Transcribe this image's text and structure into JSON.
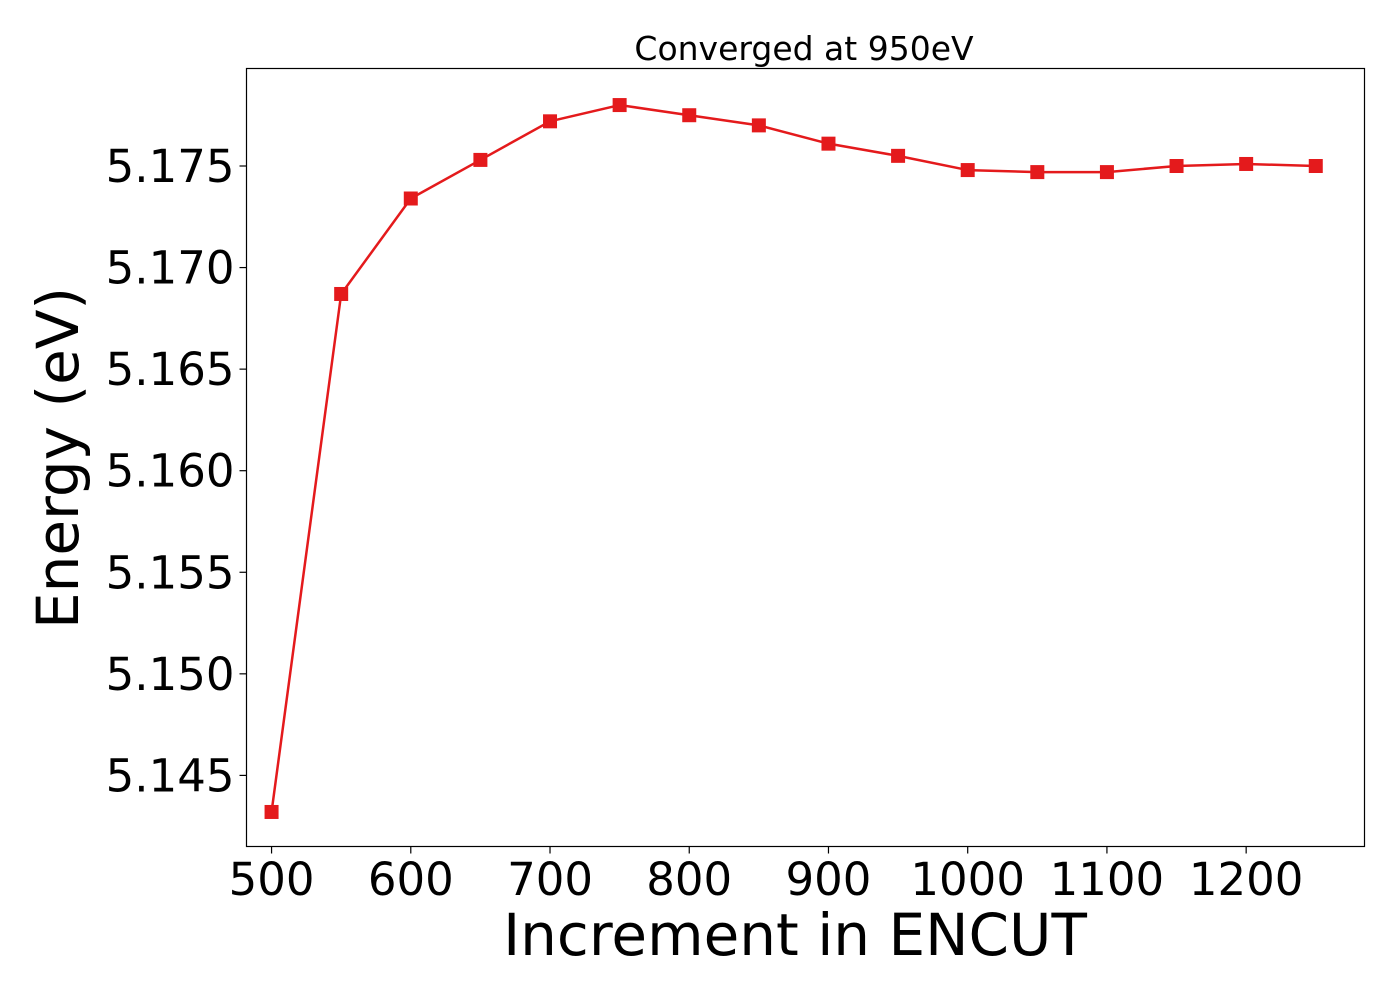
{
  "chart_data": {
    "type": "line",
    "title": "Converged at 950eV",
    "xlabel": "Increment in ENCUT",
    "ylabel": "Energy (eV)",
    "xlim": [
      482,
      1285
    ],
    "ylim": [
      5.1415,
      5.1798
    ],
    "xticks": [
      500,
      600,
      700,
      800,
      900,
      1000,
      1100,
      1200
    ],
    "xtick_labels": [
      "500",
      "600",
      "700",
      "800",
      "900",
      "1000",
      "1100",
      "1200"
    ],
    "yticks": [
      5.145,
      5.15,
      5.155,
      5.16,
      5.165,
      5.17,
      5.175
    ],
    "ytick_labels": [
      "5.145",
      "5.150",
      "5.155",
      "5.160",
      "5.165",
      "5.170",
      "5.175"
    ],
    "grid": false,
    "series": [
      {
        "color": "#e41a1c",
        "marker": "square",
        "x": [
          500,
          550,
          600,
          650,
          700,
          750,
          800,
          850,
          900,
          950,
          1000,
          1050,
          1100,
          1150,
          1200,
          1250
        ],
        "y": [
          5.1432,
          5.1687,
          5.1734,
          5.1753,
          5.1772,
          5.178,
          5.1775,
          5.177,
          5.1761,
          5.1755,
          5.1748,
          5.1747,
          5.1747,
          5.175,
          5.1751,
          5.175
        ]
      }
    ]
  }
}
